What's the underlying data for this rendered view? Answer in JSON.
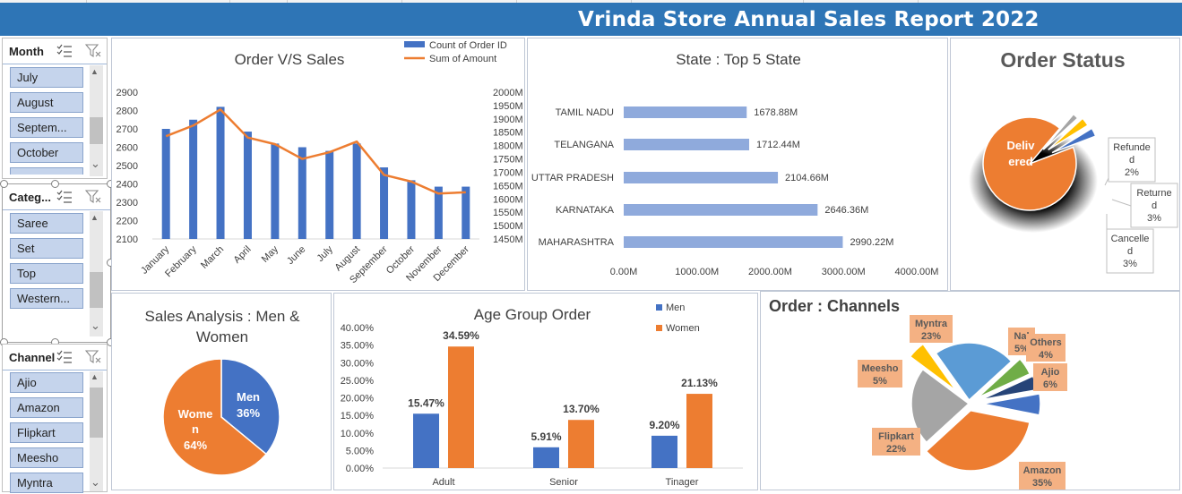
{
  "title": "Vrinda Store Annual Sales Report 2022",
  "slicers": {
    "month": {
      "label": "Month",
      "items": [
        "July",
        "August",
        "Septem...",
        "October"
      ]
    },
    "category": {
      "label": "Categ...",
      "items": [
        "Saree",
        "Set",
        "Top",
        "Western..."
      ]
    },
    "channel": {
      "label": "Channel",
      "items": [
        "Ajio",
        "Amazon",
        "Flipkart",
        "Meesho",
        "Myntra"
      ]
    }
  },
  "icons": {
    "multiselect": "multi-select-icon",
    "clear": "clear-filter-icon",
    "scroll_up": "▲",
    "scroll_down": "⌄"
  },
  "colors": {
    "header": "#2e75b6",
    "blue_bar": "#4472c4",
    "orange": "#ed7d31",
    "light_blue_bar": "#8faadc",
    "gray": "#a5a5a5",
    "yellow": "#ffc000",
    "sky": "#5b9bd5",
    "green": "#70ad47",
    "navy": "#264478"
  },
  "chart_data": [
    {
      "type": "bar+line",
      "title": "Order V/S Sales",
      "categories": [
        "January",
        "February",
        "March",
        "April",
        "May",
        "June",
        "July",
        "August",
        "September",
        "October",
        "November",
        "December"
      ],
      "series": [
        {
          "name": "Count of Order ID",
          "type": "bar",
          "axis": "left",
          "values": [
            2700,
            2750,
            2820,
            2685,
            2620,
            2600,
            2580,
            2620,
            2490,
            2420,
            2385,
            2385
          ]
        },
        {
          "name": "Sum of Amount",
          "type": "line",
          "axis": "right",
          "values": [
            1835,
            1875,
            1935,
            1830,
            1805,
            1750,
            1775,
            1815,
            1690,
            1665,
            1620,
            1625
          ]
        }
      ],
      "left_axis": {
        "ticks": [
          "2100",
          "2200",
          "2300",
          "2400",
          "2500",
          "2600",
          "2700",
          "2800",
          "2900"
        ],
        "ylim": [
          2100,
          2900
        ]
      },
      "right_axis": {
        "ticks": [
          "1450M",
          "1500M",
          "1550M",
          "1600M",
          "1650M",
          "1700M",
          "1750M",
          "1800M",
          "1850M",
          "1900M",
          "1950M",
          "2000M"
        ],
        "ylim": [
          1450,
          2000
        ]
      }
    },
    {
      "type": "bar",
      "orientation": "horizontal",
      "title": "State : Top 5 State",
      "categories": [
        "TAMIL NADU",
        "TELANGANA",
        "UTTAR PRADESH",
        "KARNATAKA",
        "MAHARASHTRA"
      ],
      "values": [
        1678.88,
        1712.44,
        2104.66,
        2646.36,
        2990.22
      ],
      "labels": [
        "1678.88M",
        "1712.44M",
        "2104.66M",
        "2646.36M",
        "2990.22M"
      ],
      "x_ticks": [
        "0.00M",
        "1000.00M",
        "2000.00M",
        "3000.00M",
        "4000.00M"
      ],
      "xlim": [
        0,
        4000
      ]
    },
    {
      "type": "pie",
      "title": "Order Status",
      "slices": [
        {
          "label": "Deliv ered",
          "value": 92
        },
        {
          "label": "Refunde d",
          "value": 2,
          "pct": "2%"
        },
        {
          "label": "Returne d",
          "value": 3,
          "pct": "3%"
        },
        {
          "label": "Cancelle d",
          "value": 3,
          "pct": "3%"
        }
      ]
    },
    {
      "type": "pie",
      "title": "Sales Analysis : Men & Women",
      "slices": [
        {
          "label": "Men",
          "value": 36,
          "pct": "36%"
        },
        {
          "label": "Wome n",
          "value": 64,
          "pct": "64%"
        }
      ]
    },
    {
      "type": "bar",
      "title": "Age Group Order",
      "categories": [
        "Adult",
        "Senior",
        "Tinager"
      ],
      "series": [
        {
          "name": "Men",
          "values": [
            15.47,
            5.91,
            9.2
          ],
          "labels": [
            "15.47%",
            "5.91%",
            "9.20%"
          ]
        },
        {
          "name": "Women",
          "values": [
            34.59,
            13.7,
            21.13
          ],
          "labels": [
            "34.59%",
            "13.70%",
            "21.13%"
          ]
        }
      ],
      "y_ticks": [
        "0.00%",
        "5.00%",
        "10.00%",
        "15.00%",
        "20.00%",
        "25.00%",
        "30.00%",
        "35.00%",
        "40.00%"
      ],
      "ylim": [
        0,
        40
      ]
    },
    {
      "type": "pie",
      "title": "Order : Channels",
      "slices": [
        {
          "label": "Amazon",
          "value": 35,
          "pct": "35%"
        },
        {
          "label": "Flipkart",
          "value": 22,
          "pct": "22%"
        },
        {
          "label": "Meesho",
          "value": 5,
          "pct": "5%"
        },
        {
          "label": "Myntra",
          "value": 23,
          "pct": "23%"
        },
        {
          "label": "Nalli",
          "value": 5,
          "pct": "5%"
        },
        {
          "label": "Others",
          "value": 4,
          "pct": "4%"
        },
        {
          "label": "Ajio",
          "value": 6,
          "pct": "6%"
        }
      ],
      "display_names": {
        "Nalli": "Nal"
      }
    }
  ]
}
